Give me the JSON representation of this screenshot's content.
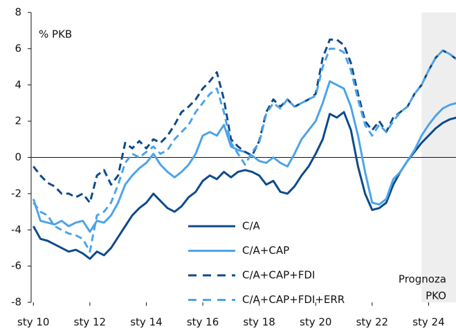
{
  "chart_data": {
    "type": "line",
    "y_label": "% PKB",
    "annotation_lines": [
      "Prognoza",
      "PKO"
    ],
    "shaded_from": 2023.75,
    "shade_color": "#eeeeee",
    "legend": "lower center",
    "x": [
      2010,
      2010.25,
      2010.5,
      2010.75,
      2011,
      2011.25,
      2011.5,
      2011.75,
      2012,
      2012.25,
      2012.5,
      2012.75,
      2013,
      2013.25,
      2013.5,
      2013.75,
      2014,
      2014.25,
      2014.5,
      2014.75,
      2015,
      2015.25,
      2015.5,
      2015.75,
      2016,
      2016.25,
      2016.5,
      2016.75,
      2017,
      2017.25,
      2017.5,
      2017.75,
      2018,
      2018.25,
      2018.5,
      2018.75,
      2019,
      2019.25,
      2019.5,
      2019.75,
      2020,
      2020.25,
      2020.5,
      2020.75,
      2021,
      2021.25,
      2021.5,
      2021.75,
      2022,
      2022.25,
      2022.5,
      2022.75,
      2023,
      2023.25,
      2023.5,
      2023.75,
      2024,
      2024.25,
      2024.5,
      2024.75,
      2025
    ],
    "xlim": [
      2009.92,
      2024.97
    ],
    "xticks": [
      {
        "value": 2010,
        "label": "sty 10"
      },
      {
        "value": 2012,
        "label": "sty 12"
      },
      {
        "value": 2014,
        "label": "sty 14"
      },
      {
        "value": 2016,
        "label": "sty 16"
      },
      {
        "value": 2018,
        "label": "sty 18"
      },
      {
        "value": 2020,
        "label": "sty 20"
      },
      {
        "value": 2022,
        "label": "sty 22"
      },
      {
        "value": 2024,
        "label": "sty 24"
      }
    ],
    "ylim": [
      -8,
      8
    ],
    "yticks": [
      -8,
      -6,
      -4,
      -2,
      0,
      2,
      4,
      6,
      8
    ],
    "series": [
      {
        "name": "C/A",
        "color": "#0d4a8a",
        "dash": false,
        "values": [
          -3.8,
          -4.5,
          -4.6,
          -4.8,
          -5.0,
          -5.2,
          -5.1,
          -5.3,
          -5.6,
          -5.2,
          -5.4,
          -5.0,
          -4.4,
          -3.8,
          -3.2,
          -2.8,
          -2.5,
          -2.0,
          -2.4,
          -2.8,
          -3.0,
          -2.7,
          -2.2,
          -1.9,
          -1.3,
          -1.0,
          -1.2,
          -0.8,
          -1.1,
          -0.8,
          -0.7,
          -0.8,
          -1.0,
          -1.5,
          -1.3,
          -1.9,
          -2.0,
          -1.6,
          -1.0,
          -0.5,
          0.2,
          1.0,
          2.4,
          2.2,
          2.5,
          1.5,
          -0.5,
          -2.0,
          -2.9,
          -2.8,
          -2.5,
          -1.5,
          -0.8,
          -0.2,
          0.3,
          0.8,
          1.2,
          1.6,
          1.9,
          2.1,
          2.2
        ]
      },
      {
        "name": "C/A+CAP",
        "color": "#4da3e8",
        "dash": false,
        "values": [
          -2.3,
          -3.5,
          -3.6,
          -3.7,
          -3.5,
          -3.8,
          -3.6,
          -3.5,
          -4.1,
          -3.5,
          -3.6,
          -3.2,
          -2.5,
          -1.5,
          -1.0,
          -0.6,
          -0.3,
          0.2,
          -0.4,
          -0.8,
          -1.1,
          -0.8,
          -0.4,
          0.2,
          1.2,
          1.4,
          1.2,
          1.8,
          0.6,
          0.4,
          0.3,
          0.1,
          -0.2,
          -0.3,
          0.0,
          -0.3,
          -0.5,
          0.2,
          1.0,
          1.5,
          2.0,
          3.0,
          4.2,
          4.0,
          3.8,
          2.8,
          1.2,
          -0.8,
          -2.5,
          -2.6,
          -2.3,
          -1.2,
          -0.8,
          -0.2,
          0.4,
          1.2,
          1.8,
          2.3,
          2.7,
          2.9,
          3.0
        ]
      },
      {
        "name": "C/A+CAP+FDI",
        "color": "#0d4a8a",
        "dash": true,
        "values": [
          -0.5,
          -1.0,
          -1.4,
          -1.6,
          -2.0,
          -2.0,
          -2.2,
          -2.0,
          -2.5,
          -1.0,
          -0.7,
          -1.5,
          -1.0,
          0.8,
          0.5,
          0.9,
          0.5,
          1.0,
          0.8,
          1.2,
          1.8,
          2.5,
          2.8,
          3.2,
          3.8,
          4.2,
          4.7,
          3.2,
          1.0,
          0.6,
          0.3,
          0.1,
          0.9,
          2.5,
          3.2,
          2.8,
          3.2,
          2.8,
          3.0,
          3.2,
          3.5,
          5.5,
          6.5,
          6.5,
          6.2,
          5.2,
          3.5,
          2.0,
          1.5,
          2.0,
          1.4,
          2.2,
          2.5,
          2.8,
          3.5,
          4.0,
          4.8,
          5.5,
          5.9,
          5.7,
          5.4
        ]
      },
      {
        "name": "C/A+CAP+FDI+ERR",
        "color": "#4da3e8",
        "dash": true,
        "values": [
          -2.5,
          -3.0,
          -3.2,
          -3.8,
          -4.0,
          -4.2,
          -4.3,
          -4.5,
          -5.2,
          -3.2,
          -3.0,
          -2.5,
          -1.5,
          -0.3,
          0.2,
          0.0,
          0.3,
          0.6,
          0.2,
          0.4,
          1.0,
          1.4,
          1.8,
          2.5,
          3.0,
          3.5,
          3.8,
          2.5,
          0.8,
          0.2,
          -0.4,
          0.3,
          0.8,
          2.4,
          3.0,
          2.7,
          3.2,
          2.8,
          3.0,
          3.2,
          3.4,
          5.0,
          6.0,
          6.0,
          5.8,
          4.8,
          3.2,
          1.8,
          1.2,
          1.8,
          1.4,
          2.0,
          2.5,
          2.8,
          3.5,
          4.0,
          4.8,
          5.5,
          5.9,
          5.7,
          5.4
        ]
      }
    ]
  }
}
